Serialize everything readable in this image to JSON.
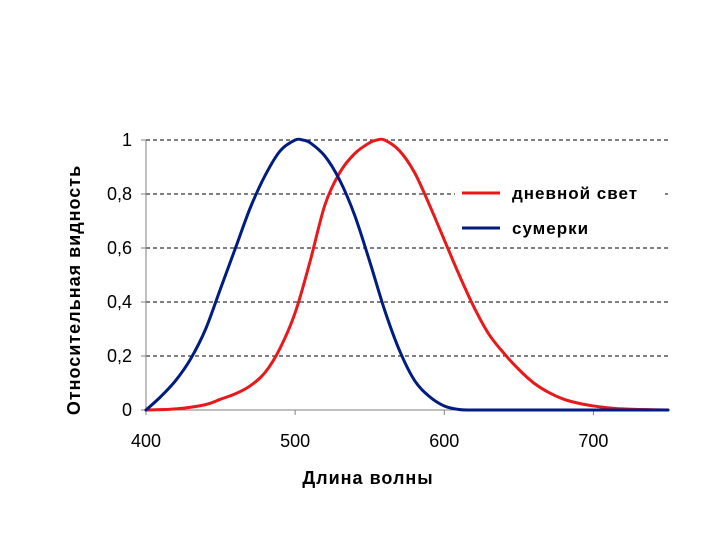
{
  "chart_data": {
    "type": "line",
    "xlabel": "Длина волны",
    "ylabel": "Относительная видность",
    "xlim": [
      400,
      750
    ],
    "ylim": [
      0,
      1
    ],
    "x_ticks": [
      400,
      500,
      600,
      700
    ],
    "x_tick_labels": [
      "400",
      "500",
      "600",
      "700"
    ],
    "y_ticks": [
      0,
      0.2,
      0.4,
      0.6,
      0.8,
      1
    ],
    "y_tick_labels": [
      "0",
      "0,2",
      "0,4",
      "0,6",
      "0,8",
      "1"
    ],
    "grid": "horizontal dashed",
    "legend": "top-right",
    "series": [
      {
        "name": "дневной свет",
        "color": "#e8191b",
        "x": [
          400,
          420,
          440,
          450,
          460,
          470,
          480,
          490,
          500,
          510,
          520,
          530,
          540,
          550,
          555,
          560,
          570,
          580,
          590,
          600,
          610,
          620,
          630,
          640,
          650,
          660,
          670,
          680,
          690,
          700,
          710,
          720,
          730,
          740,
          750
        ],
        "y": [
          0.0,
          0.004,
          0.02,
          0.04,
          0.06,
          0.09,
          0.14,
          0.23,
          0.36,
          0.55,
          0.76,
          0.88,
          0.95,
          0.99,
          1.0,
          1.0,
          0.96,
          0.88,
          0.76,
          0.63,
          0.5,
          0.38,
          0.28,
          0.21,
          0.15,
          0.1,
          0.065,
          0.04,
          0.025,
          0.015,
          0.008,
          0.004,
          0.002,
          0.001,
          0.0
        ]
      },
      {
        "name": "сумерки",
        "color": "#001c80",
        "x": [
          400,
          410,
          420,
          430,
          440,
          450,
          460,
          470,
          480,
          490,
          500,
          505,
          510,
          520,
          530,
          540,
          550,
          560,
          570,
          580,
          590,
          600,
          610,
          620,
          650,
          700,
          750
        ],
        "y": [
          0.0,
          0.05,
          0.11,
          0.19,
          0.3,
          0.45,
          0.6,
          0.75,
          0.87,
          0.96,
          1.0,
          1.0,
          0.99,
          0.94,
          0.85,
          0.72,
          0.55,
          0.37,
          0.22,
          0.11,
          0.05,
          0.015,
          0.002,
          0.0,
          0.0,
          0.0,
          0.0
        ]
      }
    ]
  }
}
